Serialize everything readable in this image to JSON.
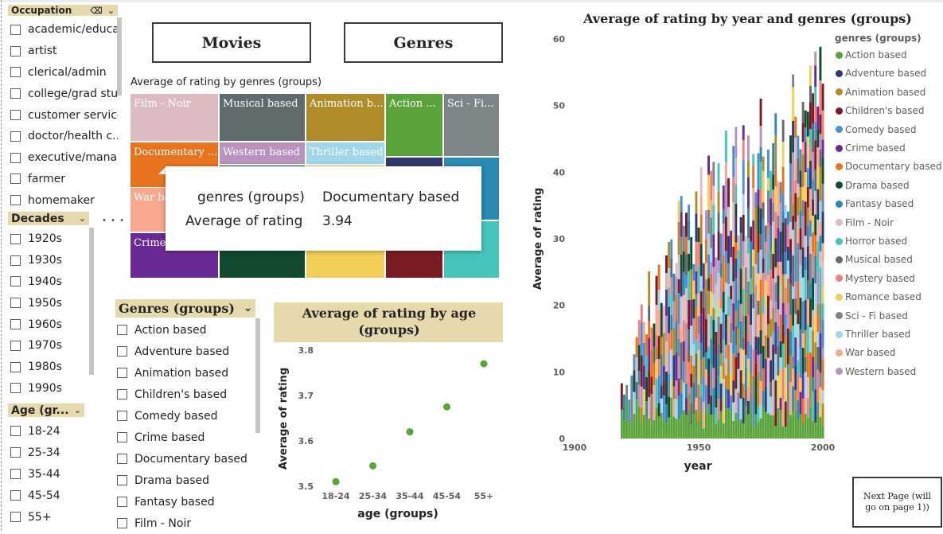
{
  "slicers": {
    "occupation": {
      "title": "Occupation",
      "items": [
        "academic/educa...",
        "artist",
        "clerical/admin",
        "college/grad stu...",
        "customer service",
        "doctor/health c...",
        "executive/mana...",
        "farmer",
        "homemaker"
      ]
    },
    "decades": {
      "title": "Decades",
      "items": [
        "1920s",
        "1930s",
        "1940s",
        "1950s",
        "1960s",
        "1970s",
        "1980s",
        "1990s"
      ]
    },
    "age": {
      "title": "Age (gr...",
      "items": [
        "18-24",
        "25-34",
        "35-44",
        "45-54",
        "55+"
      ]
    },
    "genres": {
      "title": "Genres (groups)",
      "items": [
        "Action based",
        "Adventure based",
        "Animation based",
        "Children's based",
        "Comedy based",
        "Crime based",
        "Documentary based",
        "Drama based",
        "Fantasy based",
        "Film - Noir"
      ]
    }
  },
  "more_options": "• • •",
  "nav": {
    "movies": "Movies",
    "genres": "Genres",
    "next_page": "Next Page (will go on page 1))"
  },
  "treemap": {
    "title": "Average of rating by genres (groups)",
    "tiles": [
      {
        "label": "Film - Noir",
        "color": "#dcbcc1"
      },
      {
        "label": "Musical based",
        "color": "#5f6b6d"
      },
      {
        "label": "Animation b...",
        "color": "#b08c28"
      },
      {
        "label": "Action ...",
        "color": "#5aa33a"
      },
      {
        "label": "Sci - Fi...",
        "color": "#7c8588"
      },
      {
        "label": "Documentary ...",
        "color": "#e8731f"
      },
      {
        "label": "Western based",
        "color": "#b893bd"
      },
      {
        "label": "Thriller based",
        "color": "#9fd6ea"
      },
      {
        "label": "War ba",
        "color": "#f7a88f"
      },
      {
        "label": "Crime",
        "color": "#6b2a93"
      },
      {
        "label": "",
        "color": "#114a2f"
      },
      {
        "label": "",
        "color": "#f2cf58"
      },
      {
        "label": "",
        "color": "#7a1b24"
      },
      {
        "label": "",
        "color": "#45c5bc"
      },
      {
        "label": "",
        "color": "#2d3a6b"
      },
      {
        "label": "",
        "color": "#2a8ab3"
      }
    ],
    "tooltip": {
      "k1": "genres (groups)",
      "v1": "Documentary based",
      "k2": "Average of rating",
      "v2": "3.94"
    }
  },
  "age_chart": {
    "title": "Average of rating by age (groups)",
    "xlabel": "age (groups)",
    "ylabel": "Average of rating",
    "yticks": [
      "3.8",
      "3.7",
      "3.6",
      "3.5"
    ]
  },
  "stack_chart": {
    "title": "Average of rating by year and genres (groups)",
    "xlabel": "year",
    "ylabel": "Average of rating",
    "legend_title": "genres (groups)",
    "yticks": [
      "60",
      "50",
      "40",
      "30",
      "20",
      "10",
      "0"
    ],
    "xticks": [
      "1900",
      "1950",
      "2000"
    ]
  },
  "chart_data": [
    {
      "type": "scatter",
      "title": "Average of rating by age (groups)",
      "xlabel": "age (groups)",
      "ylabel": "Average of rating",
      "categories": [
        "18-24",
        "25-34",
        "35-44",
        "45-54",
        "55+"
      ],
      "values": [
        3.51,
        3.545,
        3.62,
        3.675,
        3.77
      ],
      "ylim": [
        3.5,
        3.8
      ],
      "color": "#5aa33a"
    },
    {
      "type": "bar",
      "stacked": true,
      "title": "Average of rating by year and genres (groups)",
      "xlabel": "year",
      "ylabel": "Average of rating",
      "xlim": [
        1900,
        2000
      ],
      "ylim": [
        0,
        60
      ],
      "legend_placement": "right",
      "series": [
        {
          "name": "Action based",
          "color": "#5aa33a"
        },
        {
          "name": "Adventure based",
          "color": "#2d3a6b"
        },
        {
          "name": "Animation based",
          "color": "#b08c28"
        },
        {
          "name": "Children's based",
          "color": "#7a1b24"
        },
        {
          "name": "Comedy based",
          "color": "#4a8fd4"
        },
        {
          "name": "Crime based",
          "color": "#6b2a93"
        },
        {
          "name": "Documentary based",
          "color": "#e8731f"
        },
        {
          "name": "Drama based",
          "color": "#114a2f"
        },
        {
          "name": "Fantasy based",
          "color": "#2a8ab3"
        },
        {
          "name": "Film - Noir",
          "color": "#dcbcc1"
        },
        {
          "name": "Horror based",
          "color": "#45c5bc"
        },
        {
          "name": "Musical based",
          "color": "#5f6b6d"
        },
        {
          "name": "Mystery based",
          "color": "#ef7f7b"
        },
        {
          "name": "Romance based",
          "color": "#f2cf58"
        },
        {
          "name": "Sci - Fi based",
          "color": "#7c8588"
        },
        {
          "name": "Thriller based",
          "color": "#9fd6ea"
        },
        {
          "name": "War based",
          "color": "#f7a88f"
        },
        {
          "name": "Western based",
          "color": "#b893bd"
        }
      ],
      "totals_by_year_approx": {
        "1919": 9,
        "1922": 8,
        "1926": 21,
        "1930": 22,
        "1935": 25,
        "1940": 30,
        "1945": 33,
        "1950": 35,
        "1955": 38,
        "1960": 40,
        "1965": 42,
        "1970": 43,
        "1975": 45,
        "1980": 44,
        "1985": 46,
        "1990": 49,
        "1995": 56,
        "2000": 50
      }
    }
  ]
}
